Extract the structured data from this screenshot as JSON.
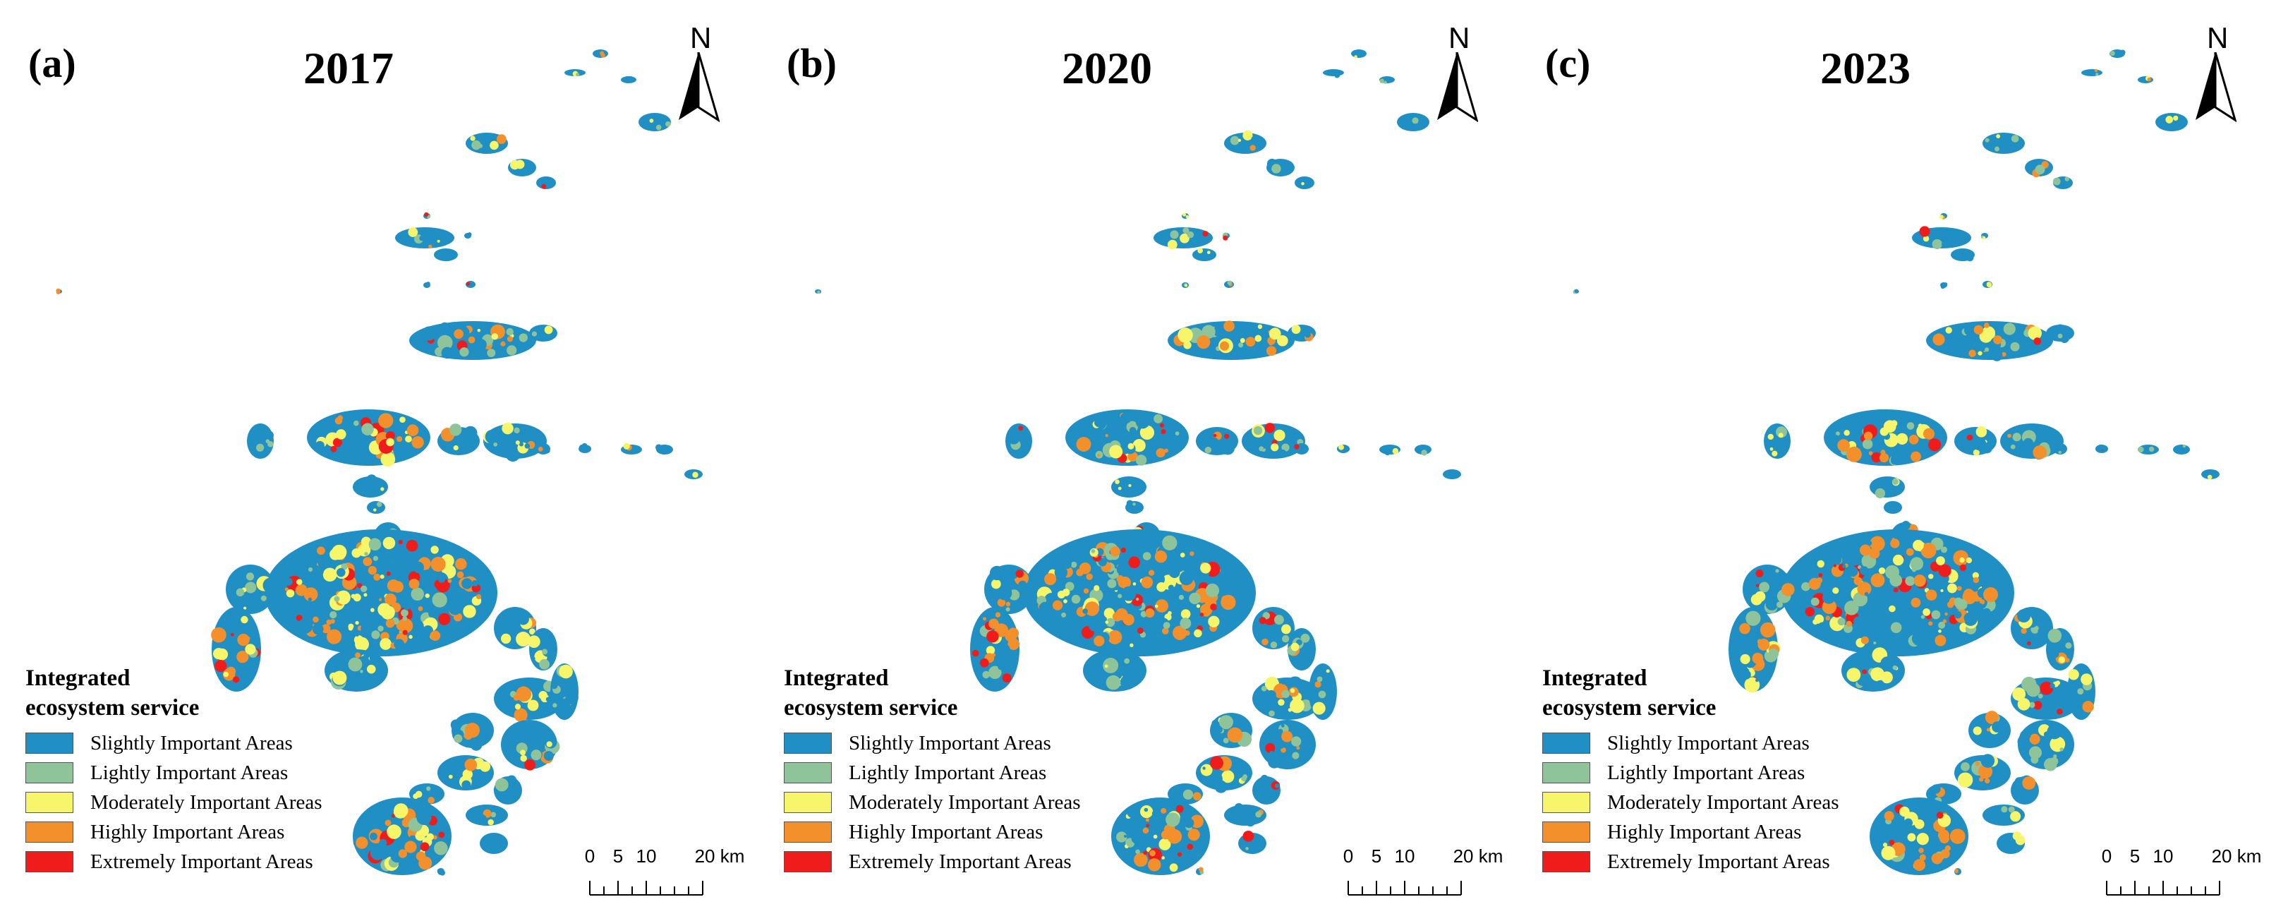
{
  "colors": {
    "slightly": "#1f8fc4",
    "lightly": "#8fc49a",
    "moderately": "#f7f56a",
    "highly": "#f4902c",
    "extremely": "#f01c1c"
  },
  "north_arrow": {
    "label": "N"
  },
  "legend": {
    "title_line1": "Integrated",
    "title_line2": "ecosystem service",
    "items": [
      {
        "label": "Slightly Important Areas",
        "color": "#1f8fc4"
      },
      {
        "label": "Lightly Important Areas",
        "color": "#8fc49a"
      },
      {
        "label": "Moderately Important Areas",
        "color": "#f7f56a"
      },
      {
        "label": "Highly Important Areas",
        "color": "#f4902c"
      },
      {
        "label": "Extremely Important Areas",
        "color": "#f01c1c"
      }
    ]
  },
  "scale_bar": {
    "labels": [
      "0",
      "5",
      "10",
      "20 km"
    ]
  },
  "panels": [
    {
      "letter": "(a)",
      "year": "2017"
    },
    {
      "letter": "(b)",
      "year": "2020"
    },
    {
      "letter": "(c)",
      "year": "2023"
    }
  ]
}
